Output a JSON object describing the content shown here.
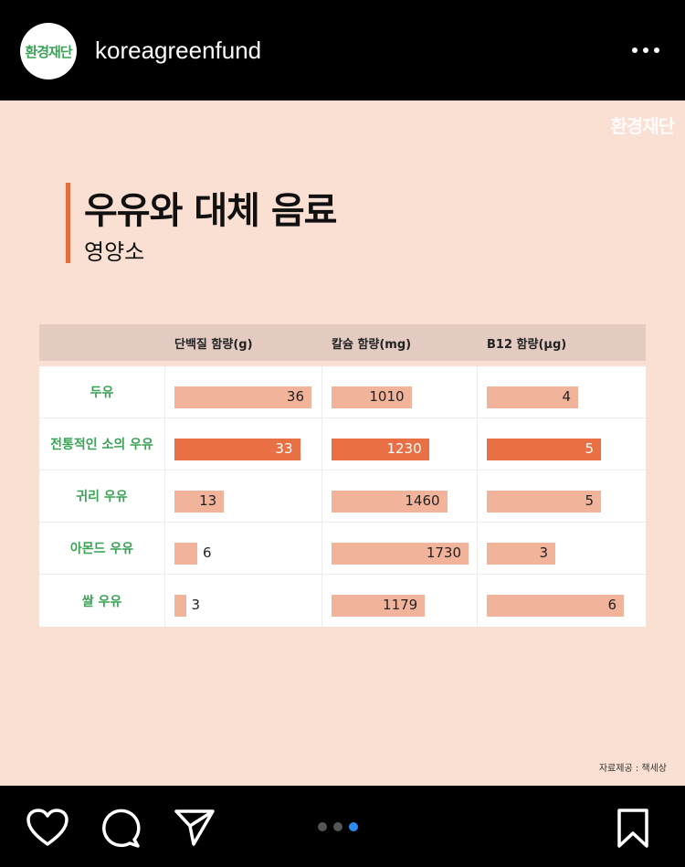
{
  "account": {
    "avatar_text": "환경재단",
    "username": "koreagreenfund"
  },
  "post": {
    "watermark": "환경재단",
    "title": "우유와 대체 음료",
    "subtitle": "영양소",
    "source": "자료제공 : 책세상",
    "table": {
      "headers": [
        "",
        "단백질 함량(g)",
        "칼슘 함량(mg)",
        "B12 함량(μg)"
      ],
      "rows": [
        {
          "name": "두유",
          "protein": "36",
          "calcium": "1010",
          "b12": "4",
          "highlight": false
        },
        {
          "name": "전통적인 소의 우유",
          "protein": "33",
          "calcium": "1230",
          "b12": "5",
          "highlight": true
        },
        {
          "name": "귀리 우유",
          "protein": "13",
          "calcium": "1460",
          "b12": "5",
          "highlight": false
        },
        {
          "name": "아몬드 우유",
          "protein": "6",
          "calcium": "1730",
          "b12": "3",
          "highlight": false
        },
        {
          "name": "쌀 우유",
          "protein": "3",
          "calcium": "1179",
          "b12": "6",
          "highlight": false
        }
      ]
    },
    "colors": {
      "bar": "#f1b49b",
      "highlight_bar": "#e96f45",
      "label_green": "#3aa356",
      "accent": "#e36d3d"
    }
  },
  "footer": {
    "icons": [
      "heart-icon",
      "comment-icon",
      "share-icon",
      "bookmark-icon"
    ],
    "carousel": {
      "count": 3,
      "active_index": 2
    }
  }
}
